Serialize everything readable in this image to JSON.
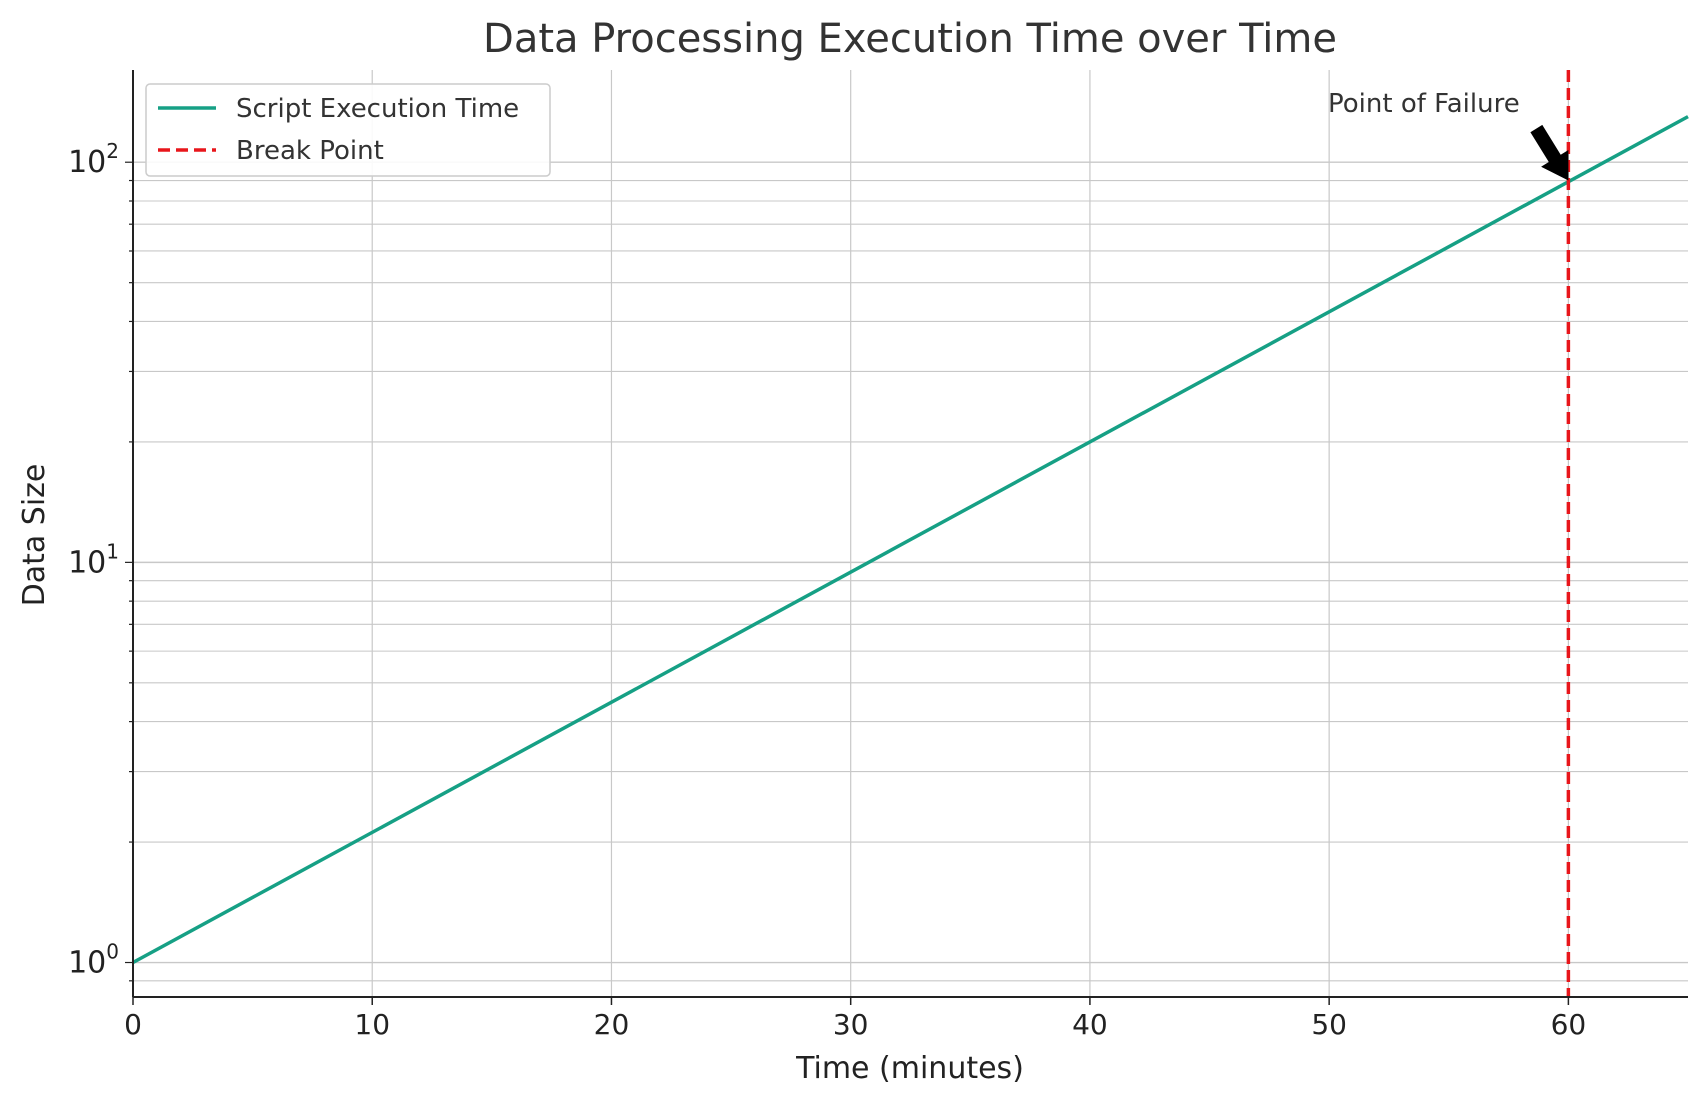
{
  "chart_data": {
    "type": "line",
    "title": "Data Processing Execution Time over Time",
    "xlabel": "Time (minutes)",
    "ylabel": "Data Size",
    "xlim": [
      0,
      65
    ],
    "ylim": [
      0.82,
      170
    ],
    "yscale": "log",
    "grid": true,
    "legend_position": "top-left",
    "x_ticks": [
      0,
      10,
      20,
      30,
      40,
      50,
      60
    ],
    "y_ticks": [
      {
        "value": 1,
        "base": "10",
        "exp": "0"
      },
      {
        "value": 10,
        "base": "10",
        "exp": "1"
      },
      {
        "value": 100,
        "base": "10",
        "exp": "2"
      }
    ],
    "series": [
      {
        "name": "Script Execution Time",
        "color": "#16a085",
        "style": "solid",
        "x": [
          0,
          65
        ],
        "y": [
          1.0,
          130
        ]
      }
    ],
    "reference_lines": [
      {
        "name": "Break Point",
        "orientation": "vertical",
        "x": 60,
        "color": "#e8161b",
        "style": "dashed"
      }
    ],
    "annotations": [
      {
        "text": "Point of Failure",
        "x": 60,
        "y": 90.0,
        "arrow": true
      }
    ]
  }
}
